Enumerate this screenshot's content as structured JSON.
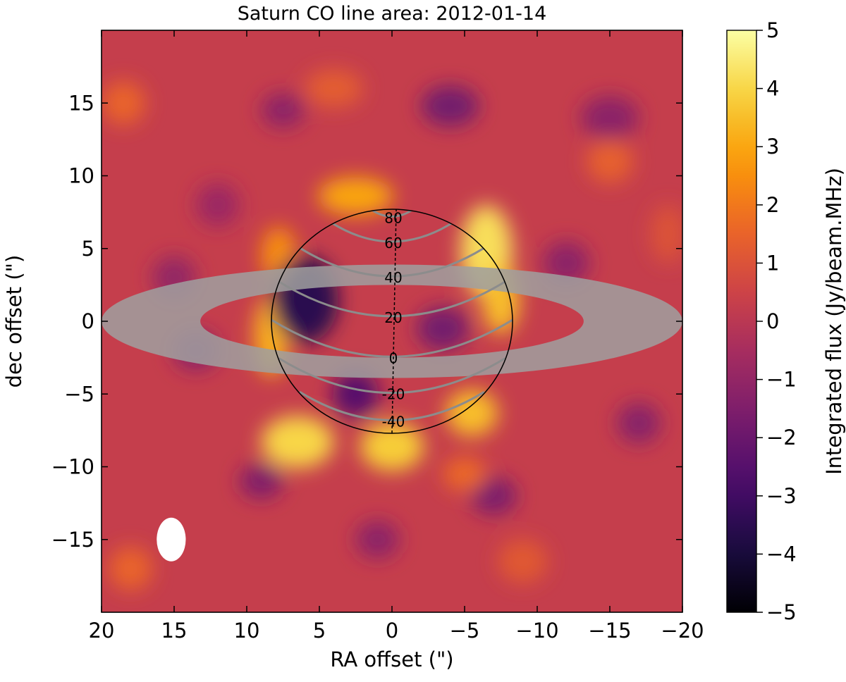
{
  "chart_data": {
    "type": "heatmap",
    "title": "Saturn CO line area: 2012-01-14",
    "xlabel": "RA offset (\")",
    "ylabel": "dec offset (\")",
    "xlim": [
      20,
      -20
    ],
    "ylim": [
      -20,
      20
    ],
    "xticks": [
      20,
      15,
      10,
      5,
      0,
      -5,
      -10,
      -15,
      -20
    ],
    "yticks": [
      -15,
      -10,
      -5,
      0,
      5,
      10,
      15
    ],
    "colorbar": {
      "label": "Integrated flux (Jy/beam.MHz)",
      "range": [
        -5,
        5
      ],
      "ticks": [
        -5,
        -4,
        -3,
        -2,
        -1,
        0,
        1,
        2,
        3,
        4,
        5
      ],
      "colormap": "inferno",
      "stops": [
        "#000004",
        "#1b0c41",
        "#4a0c6b",
        "#781c6d",
        "#a52c60",
        "#cf4446",
        "#ed6925",
        "#fb9b06",
        "#f7d13d",
        "#fcffa4"
      ]
    },
    "background_level": 0.3,
    "planet": {
      "center": [
        0,
        0
      ],
      "equatorial_radius": 8.3,
      "polar_radius": 7.7,
      "latitude_contours": [
        -40,
        -20,
        0,
        20,
        40,
        60,
        80
      ],
      "ring_outer": [
        20.0,
        3.9
      ],
      "ring_inner": [
        13.2,
        2.5
      ],
      "ring_color": "#a0a0a0"
    },
    "features": [
      {
        "x": 0,
        "y": -8.6,
        "rx": 2.2,
        "ry": 1.7,
        "value": 3.8
      },
      {
        "x": 6.5,
        "y": -8.3,
        "rx": 2.5,
        "ry": 1.8,
        "value": 4.0
      },
      {
        "x": -6.5,
        "y": 4.8,
        "rx": 1.8,
        "ry": 3.2,
        "value": 4.2
      },
      {
        "x": -7.5,
        "y": 1.5,
        "rx": 1.3,
        "ry": 2.4,
        "value": 3.5
      },
      {
        "x": 2.5,
        "y": 8.6,
        "rx": 2.6,
        "ry": 1.3,
        "value": 3.0
      },
      {
        "x": 8.3,
        "y": -1.0,
        "rx": 1.2,
        "ry": 2.8,
        "value": 3.2
      },
      {
        "x": -5.5,
        "y": -6.3,
        "rx": 1.8,
        "ry": 1.6,
        "value": 3.5
      },
      {
        "x": 7.8,
        "y": 4.5,
        "rx": 1.2,
        "ry": 2.0,
        "value": 2.5
      },
      {
        "x": 6.0,
        "y": 1.5,
        "rx": 2.3,
        "ry": 3.0,
        "value": -3.5
      },
      {
        "x": 2.5,
        "y": -5.0,
        "rx": 1.6,
        "ry": 1.6,
        "value": -2.5
      },
      {
        "x": -3.5,
        "y": -0.5,
        "rx": 1.8,
        "ry": 1.5,
        "value": -1.8
      },
      {
        "x": -4.0,
        "y": 14.8,
        "rx": 2.0,
        "ry": 1.4,
        "value": -1.8
      },
      {
        "x": 7.5,
        "y": 14.5,
        "rx": 1.5,
        "ry": 1.2,
        "value": -1.2
      },
      {
        "x": 9.0,
        "y": -11.0,
        "rx": 1.5,
        "ry": 1.2,
        "value": -1.5
      },
      {
        "x": -7.0,
        "y": -12.0,
        "rx": 1.6,
        "ry": 1.3,
        "value": -1.6
      },
      {
        "x": -17.0,
        "y": -7.0,
        "rx": 1.5,
        "ry": 1.4,
        "value": -1.3
      },
      {
        "x": 13.5,
        "y": -2.0,
        "rx": 1.6,
        "ry": 1.4,
        "value": -1.2
      },
      {
        "x": -15.0,
        "y": 14.0,
        "rx": 2.0,
        "ry": 1.5,
        "value": -1.2
      },
      {
        "x": 15.0,
        "y": 3.0,
        "rx": 1.5,
        "ry": 1.5,
        "value": -1.0
      },
      {
        "x": -12.0,
        "y": 4.0,
        "rx": 1.6,
        "ry": 1.5,
        "value": -1.2
      },
      {
        "x": 18.5,
        "y": 15.0,
        "rx": 1.5,
        "ry": 1.5,
        "value": 1.5
      },
      {
        "x": 18.0,
        "y": -17.0,
        "rx": 1.5,
        "ry": 1.5,
        "value": 1.5
      },
      {
        "x": -15.0,
        "y": 11.0,
        "rx": 1.6,
        "ry": 1.5,
        "value": 1.4
      },
      {
        "x": -9.0,
        "y": -16.5,
        "rx": 1.7,
        "ry": 1.5,
        "value": 1.2
      },
      {
        "x": 4.0,
        "y": 16.0,
        "rx": 2.0,
        "ry": 1.3,
        "value": 1.3
      },
      {
        "x": -5.0,
        "y": -10.5,
        "rx": 1.5,
        "ry": 1.2,
        "value": 1.6
      },
      {
        "x": 12.0,
        "y": 8.0,
        "rx": 1.5,
        "ry": 1.5,
        "value": -0.8
      },
      {
        "x": 1.0,
        "y": -15.0,
        "rx": 1.5,
        "ry": 1.3,
        "value": -1.2
      },
      {
        "x": -19.0,
        "y": 6.0,
        "rx": 1.2,
        "ry": 2.0,
        "value": 1.0
      }
    ],
    "beam": {
      "x": 15.2,
      "y": -15.0,
      "major": 1.5,
      "minor": 1.0,
      "color": "#ffffff"
    }
  }
}
